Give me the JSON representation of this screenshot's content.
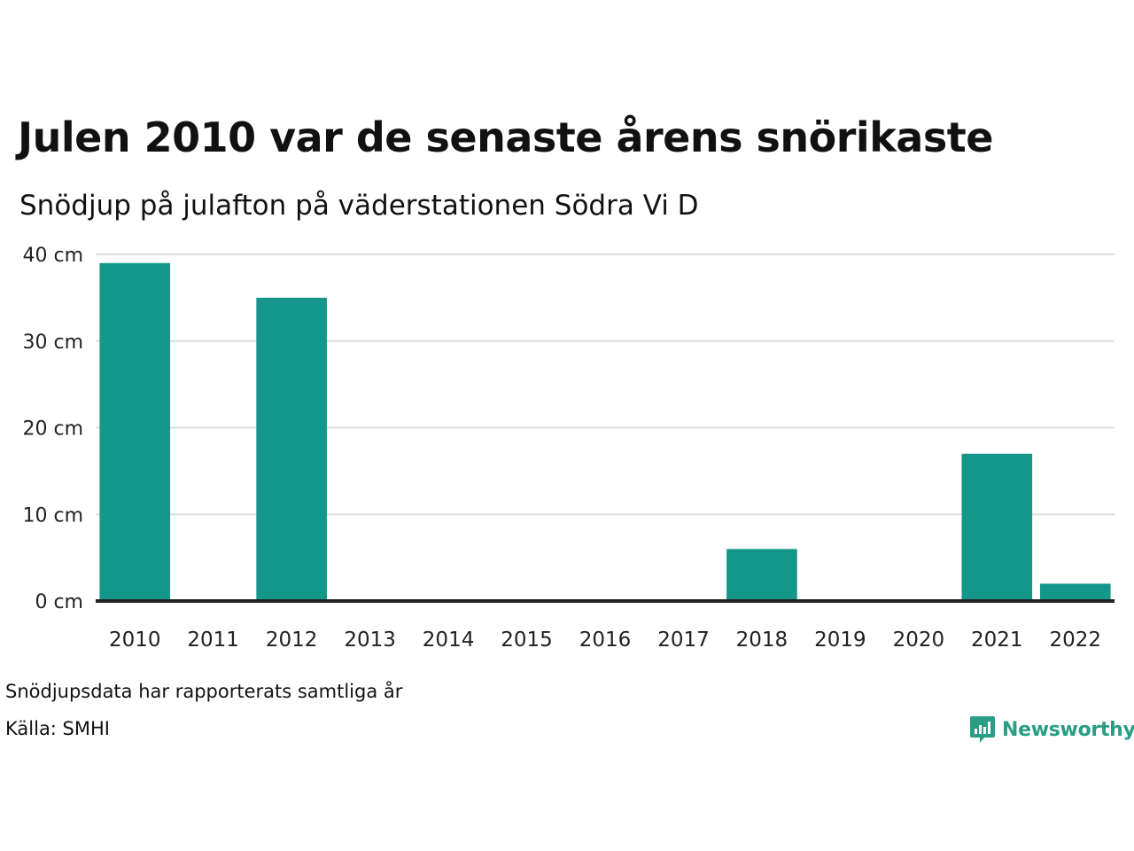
{
  "title": "Julen 2010 var de senaste årens snörikaste",
  "subtitle": "Snödjup på julafton på väderstationen Södra Vi D",
  "footnote": "Snödjupsdata har rapporterats samtliga år",
  "source": "Källa: SMHI",
  "brand": "Newsworthy",
  "colors": {
    "bar": "#14968a",
    "grid": "#dddddd",
    "baseline": "#222222",
    "brand": "#2a9d86"
  },
  "chart_data": {
    "type": "bar",
    "categories": [
      "2010",
      "2011",
      "2012",
      "2013",
      "2014",
      "2015",
      "2016",
      "2017",
      "2018",
      "2019",
      "2020",
      "2021",
      "2022"
    ],
    "values": [
      39,
      0,
      35,
      0,
      0,
      0,
      0,
      0,
      6,
      0,
      0,
      17,
      2
    ],
    "ylim": [
      0,
      40
    ],
    "yticks": [
      0,
      10,
      20,
      30,
      40
    ],
    "ytick_labels": [
      "0 cm",
      "10 cm",
      "20 cm",
      "30 cm",
      "40 cm"
    ],
    "grid": true
  }
}
